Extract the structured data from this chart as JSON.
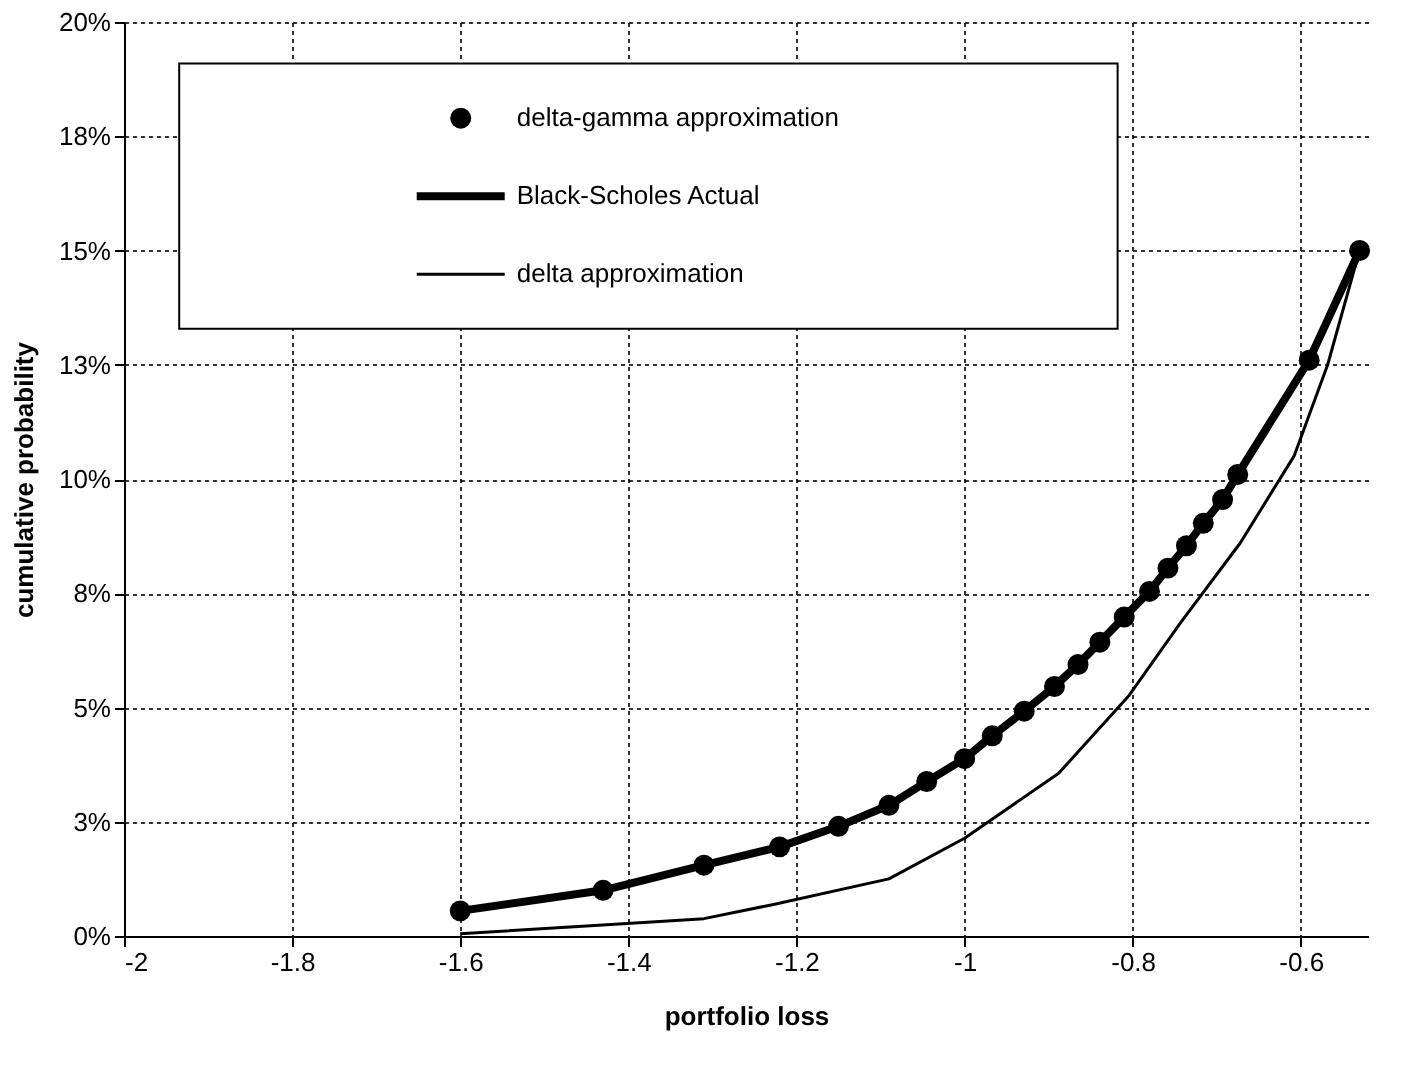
{
  "chart_data": {
    "type": "line",
    "xlabel": "portfolio loss",
    "ylabel": "cumulative probability",
    "xlim": [
      -2,
      -0.52
    ],
    "xticks": [
      -2,
      -1.8,
      -1.6,
      -1.4,
      -1.2,
      -1,
      -0.8,
      -0.6
    ],
    "ylim": [
      0,
      20
    ],
    "yticks": [
      {
        "value": 0,
        "label": "0%"
      },
      {
        "value": 2.5,
        "label": "3%"
      },
      {
        "value": 5,
        "label": "5%"
      },
      {
        "value": 7.5,
        "label": "8%"
      },
      {
        "value": 10,
        "label": "10%"
      },
      {
        "value": 12.5,
        "label": "13%"
      },
      {
        "value": 15,
        "label": "15%"
      },
      {
        "value": 17.5,
        "label": "18%"
      },
      {
        "value": 20,
        "label": "20%"
      }
    ],
    "grid": true,
    "legend": "top left",
    "series": [
      {
        "name": "delta-gamma approximation",
        "type": "scatter",
        "marker": "circle",
        "color": "#000000",
        "x": [
          -1.6,
          -1.43,
          -1.31,
          -1.22,
          -1.15,
          -1.09,
          -1.045,
          -1.0,
          -0.967,
          -0.929,
          -0.893,
          -0.865,
          -0.839,
          -0.81,
          -0.78,
          -0.758,
          -0.736,
          -0.716,
          -0.693,
          -0.675,
          -0.59,
          -0.53
        ],
        "values": [
          0.55,
          1.0,
          1.55,
          1.95,
          2.4,
          2.86,
          3.38,
          3.88,
          4.38,
          4.92,
          5.46,
          5.94,
          6.43,
          6.98,
          7.54,
          8.05,
          8.54,
          9.03,
          9.55,
          10.1,
          12.6,
          15.0
        ]
      },
      {
        "name": "Black-Scholes Actual",
        "color": "#000000",
        "x": [
          -1.6,
          -1.43,
          -1.31,
          -1.22,
          -1.15,
          -1.09,
          -1.045,
          -1.0,
          -0.967,
          -0.929,
          -0.893,
          -0.865,
          -0.839,
          -0.81,
          -0.78,
          -0.758,
          -0.736,
          -0.716,
          -0.693,
          -0.675,
          -0.59,
          -0.53
        ],
        "values": [
          0.55,
          1.0,
          1.55,
          1.95,
          2.4,
          2.86,
          3.38,
          3.88,
          4.38,
          4.92,
          5.46,
          5.94,
          6.43,
          6.98,
          7.54,
          8.05,
          8.54,
          9.03,
          9.55,
          10.1,
          12.6,
          15.0
        ]
      },
      {
        "name": "delta approximation",
        "color": "#000000",
        "x": [
          -1.6,
          -1.44,
          -1.31,
          -1.23,
          -1.09,
          -1.0,
          -0.888,
          -0.804,
          -0.744,
          -0.672,
          -0.608,
          -0.568,
          -0.53
        ],
        "values": [
          0.05,
          0.23,
          0.38,
          0.68,
          1.25,
          2.14,
          3.56,
          5.27,
          6.83,
          8.6,
          10.5,
          12.5,
          15.0
        ]
      }
    ]
  }
}
